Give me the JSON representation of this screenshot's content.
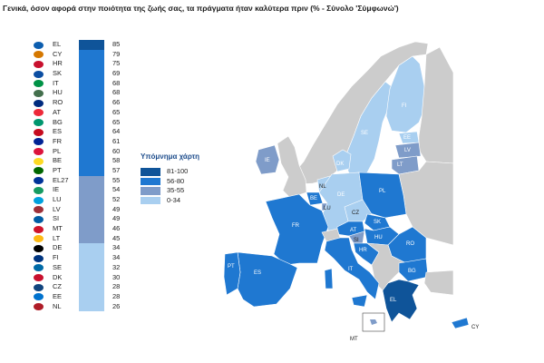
{
  "title": "Γενικά, όσον αφορά στην ποιότητα της ζωής σας, τα πράγματα ήταν καλύτερα πριν (%  - Σύνολο 'Σύμφωνώ')",
  "colors": {
    "c81_100": "#0f5499",
    "c56_80": "#1f78d1",
    "c35_55": "#7f9cc9",
    "c0_34": "#a9cff0",
    "nodata": "#cccccc"
  },
  "legend": {
    "title": "Υπόμνημα χάρτη",
    "items": [
      {
        "label": "81-100",
        "color": "#0f5499"
      },
      {
        "label": "56-80",
        "color": "#1f78d1"
      },
      {
        "label": "35-55",
        "color": "#7f9cc9"
      },
      {
        "label": "0-34",
        "color": "#a9cff0"
      }
    ]
  },
  "chart_data": {
    "type": "bar",
    "categories": [
      "EL",
      "CY",
      "HR",
      "SK",
      "IT",
      "HU",
      "RO",
      "AT",
      "BG",
      "ES",
      "FR",
      "PL",
      "BE",
      "PT",
      "EL27",
      "IE",
      "LU",
      "LV",
      "SI",
      "MT",
      "LT",
      "DE",
      "FI",
      "SE",
      "DK",
      "CZ",
      "EE",
      "NL"
    ],
    "values": [
      85,
      79,
      75,
      69,
      68,
      68,
      66,
      65,
      65,
      64,
      61,
      60,
      58,
      57,
      55,
      54,
      52,
      49,
      49,
      46,
      45,
      34,
      34,
      32,
      30,
      28,
      28,
      26
    ],
    "flags": [
      "#0d5eaf",
      "#d57800",
      "#c8102e",
      "#0b4ea2",
      "#009246",
      "#436f4d",
      "#002b7f",
      "#ed2939",
      "#00966e",
      "#c60b1e",
      "#002395",
      "#dc143c",
      "#fdda24",
      "#006600",
      "#003399",
      "#169b62",
      "#00a1de",
      "#9e3039",
      "#005da4",
      "#cf142b",
      "#fdb913",
      "#000000",
      "#003580",
      "#006aa7",
      "#c8102e",
      "#11457e",
      "#0072ce",
      "#ae1c28"
    ]
  },
  "map_labels": [
    "FI",
    "SE",
    "EE",
    "LV",
    "LT",
    "DK",
    "IE",
    "NL",
    "BE",
    "DE",
    "PL",
    "LU",
    "CZ",
    "SK",
    "FR",
    "AT",
    "HU",
    "RO",
    "SI",
    "HR",
    "IT",
    "BG",
    "PT",
    "ES",
    "EL",
    "MT",
    "CY"
  ]
}
